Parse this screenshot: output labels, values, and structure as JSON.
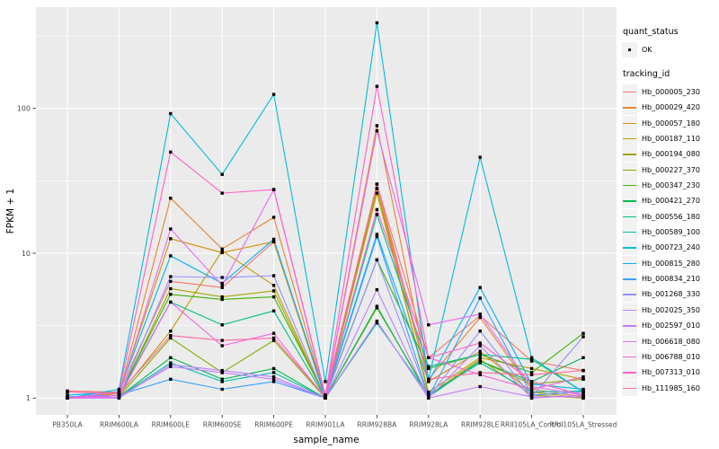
{
  "figure": {
    "panel_fill": "#EBEBEB",
    "grid_color": "#FFFFFF",
    "tick_color": "#333333",
    "tick_label_color": "#4D4D4D",
    "point_color": "#000000",
    "background": "#FFFFFF"
  },
  "axes": {
    "y_title": "FPKM + 1",
    "x_title": "sample_name",
    "y_tick_labels": [
      "1",
      "10",
      "100"
    ]
  },
  "legend": {
    "quant_title": "quant_status",
    "quant_item_label": "OK",
    "tracking_title": "tracking_id",
    "key_fill": "#F2F2F2"
  },
  "chart_data": {
    "type": "line",
    "title": "",
    "xlabel": "sample_name",
    "ylabel": "FPKM + 1",
    "y_scale": "log10",
    "y_ticks": [
      1,
      10,
      100
    ],
    "y_minor_ticks": [
      3.1623,
      31.623,
      316.23
    ],
    "ylim": [
      0.93,
      500
    ],
    "grid": true,
    "legend_position": "right",
    "point_marker": "small black square (quant_status = OK)",
    "categories": [
      "PB350LA",
      "RRIM600LA",
      "RRIM600LE",
      "RRIM600SE",
      "RRIM600PE",
      "RRIM901LA",
      "RRIM928BA",
      "RRIM928LA",
      "RRIM928LE",
      "RRII105LA_Control",
      "RRII105LA_Stressed"
    ],
    "series": [
      {
        "name": "Hb_000005_230",
        "color": "#F8766D",
        "values": [
          1.12,
          1.1,
          6.4,
          5.8,
          12.0,
          1.05,
          30,
          1.9,
          3.7,
          1.8,
          1.55
        ]
      },
      {
        "name": "Hb_000029_420",
        "color": "#EA8331",
        "values": [
          1.02,
          1.05,
          24,
          10.7,
          17.7,
          1.02,
          76,
          1.35,
          3.6,
          1.15,
          1.02
        ]
      },
      {
        "name": "Hb_000057_180",
        "color": "#D89000",
        "values": [
          1.0,
          1.08,
          12.6,
          10.1,
          12.0,
          1.0,
          28,
          1.3,
          2.1,
          1.1,
          1.0
        ]
      },
      {
        "name": "Hb_000187_110",
        "color": "#C09B00",
        "values": [
          1.0,
          1.05,
          2.9,
          10.4,
          6.0,
          1.0,
          26,
          1.1,
          1.9,
          1.6,
          1.35
        ]
      },
      {
        "name": "Hb_000194_080",
        "color": "#A3A500",
        "values": [
          1.0,
          1.02,
          5.7,
          5.0,
          5.5,
          1.0,
          28,
          1.05,
          1.85,
          1.05,
          1.0
        ]
      },
      {
        "name": "Hb_000227_370",
        "color": "#7CAE00",
        "values": [
          1.0,
          1.02,
          2.6,
          1.5,
          2.5,
          1.0,
          4.2,
          1.05,
          1.8,
          1.25,
          1.35
        ]
      },
      {
        "name": "Hb_000347_230",
        "color": "#39B600",
        "values": [
          1.0,
          1.05,
          5.2,
          4.8,
          5.0,
          1.02,
          9.0,
          1.6,
          2.0,
          1.5,
          2.8
        ]
      },
      {
        "name": "Hb_000421_270",
        "color": "#00BB4E",
        "values": [
          1.0,
          1.02,
          1.9,
          1.35,
          1.6,
          1.0,
          4.3,
          1.02,
          1.8,
          1.3,
          1.9
        ]
      },
      {
        "name": "Hb_000556_180",
        "color": "#00C087",
        "values": [
          1.0,
          1.05,
          4.6,
          3.2,
          4.0,
          1.0,
          18.5,
          1.65,
          2.0,
          1.85,
          1.1
        ]
      },
      {
        "name": "Hb_000589_100",
        "color": "#00C0AF",
        "values": [
          1.0,
          1.02,
          1.75,
          1.3,
          1.5,
          1.0,
          3.3,
          1.05,
          1.75,
          1.1,
          1.12
        ]
      },
      {
        "name": "Hb_000723_240",
        "color": "#00BCD8",
        "values": [
          1.0,
          1.15,
          92,
          35,
          125,
          1.3,
          390,
          1.35,
          46,
          1.9,
          1.1
        ]
      },
      {
        "name": "Hb_000815_280",
        "color": "#00B0F6",
        "values": [
          1.05,
          1.1,
          9.6,
          6.2,
          12.5,
          1.02,
          13.5,
          1.3,
          5.8,
          1.25,
          1.15
        ]
      },
      {
        "name": "Hb_000834_210",
        "color": "#35A2FF",
        "values": [
          1.02,
          1.05,
          1.35,
          1.15,
          1.3,
          1.0,
          13.0,
          1.02,
          4.9,
          1.05,
          1.1
        ]
      },
      {
        "name": "Hb_001268_330",
        "color": "#9590FF",
        "values": [
          1.0,
          1.02,
          6.9,
          6.8,
          7.0,
          1.0,
          9.0,
          1.02,
          2.9,
          1.02,
          2.65
        ]
      },
      {
        "name": "Hb_002025_350",
        "color": "#BC81FF",
        "values": [
          1.0,
          1.0,
          1.7,
          1.55,
          1.4,
          1.0,
          5.6,
          1.0,
          2.3,
          1.0,
          1.05
        ]
      },
      {
        "name": "Hb_002597_010",
        "color": "#C77CFF",
        "values": [
          1.0,
          1.02,
          1.65,
          1.5,
          1.35,
          1.0,
          3.4,
          1.0,
          1.2,
          1.02,
          1.02
        ]
      },
      {
        "name": "Hb_006618_080",
        "color": "#E76BF3",
        "values": [
          1.0,
          1.05,
          14.7,
          6.0,
          27.5,
          1.02,
          70,
          3.2,
          3.8,
          1.2,
          1.05
        ]
      },
      {
        "name": "Hb_006788_010",
        "color": "#F763E0",
        "values": [
          1.0,
          1.02,
          4.6,
          2.3,
          2.8,
          1.0,
          20,
          1.9,
          1.45,
          1.15,
          1.4
        ]
      },
      {
        "name": "Hb_007313_010",
        "color": "#FF61C9",
        "values": [
          1.0,
          1.1,
          50,
          26,
          27.5,
          1.05,
          142,
          1.9,
          2.4,
          1.3,
          1.05
        ]
      },
      {
        "name": "Hb_111985_160",
        "color": "#FF689F",
        "values": [
          1.1,
          1.08,
          2.7,
          2.5,
          2.6,
          1.02,
          30,
          1.35,
          1.5,
          1.45,
          1.55
        ]
      }
    ]
  }
}
